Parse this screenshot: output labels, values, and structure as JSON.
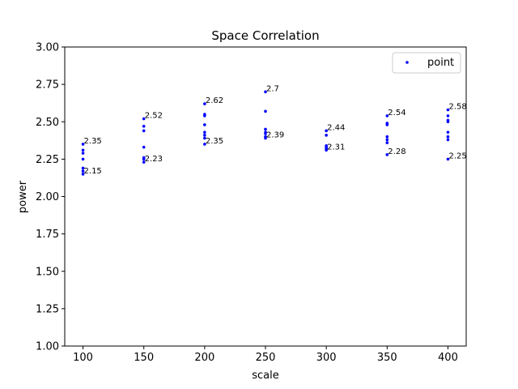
{
  "chart_data": {
    "type": "scatter",
    "title": "Space Correlation",
    "xlabel": "scale",
    "ylabel": "power",
    "xlim": [
      85,
      415
    ],
    "ylim": [
      1.0,
      3.0
    ],
    "x_ticks": [
      "100",
      "150",
      "200",
      "250",
      "300",
      "350",
      "400"
    ],
    "y_ticks": [
      "1.00",
      "1.25",
      "1.50",
      "1.75",
      "2.00",
      "2.25",
      "2.50",
      "2.75",
      "3.00"
    ],
    "grid": false,
    "legend_position": "top-right",
    "marker_color": "#0000ff",
    "series": [
      {
        "name": "point",
        "points": [
          {
            "x": 100,
            "y": 2.35
          },
          {
            "x": 100,
            "y": 2.31
          },
          {
            "x": 100,
            "y": 2.29
          },
          {
            "x": 100,
            "y": 2.25
          },
          {
            "x": 100,
            "y": 2.19
          },
          {
            "x": 100,
            "y": 2.17
          },
          {
            "x": 100,
            "y": 2.15
          },
          {
            "x": 150,
            "y": 2.52
          },
          {
            "x": 150,
            "y": 2.47
          },
          {
            "x": 150,
            "y": 2.44
          },
          {
            "x": 150,
            "y": 2.33
          },
          {
            "x": 150,
            "y": 2.26
          },
          {
            "x": 150,
            "y": 2.25
          },
          {
            "x": 150,
            "y": 2.23
          },
          {
            "x": 200,
            "y": 2.62
          },
          {
            "x": 200,
            "y": 2.55
          },
          {
            "x": 200,
            "y": 2.54
          },
          {
            "x": 200,
            "y": 2.48
          },
          {
            "x": 200,
            "y": 2.43
          },
          {
            "x": 200,
            "y": 2.41
          },
          {
            "x": 200,
            "y": 2.39
          },
          {
            "x": 200,
            "y": 2.35
          },
          {
            "x": 250,
            "y": 2.7
          },
          {
            "x": 250,
            "y": 2.57
          },
          {
            "x": 250,
            "y": 2.45
          },
          {
            "x": 250,
            "y": 2.43
          },
          {
            "x": 250,
            "y": 2.42
          },
          {
            "x": 250,
            "y": 2.4
          },
          {
            "x": 250,
            "y": 2.39
          },
          {
            "x": 300,
            "y": 2.44
          },
          {
            "x": 300,
            "y": 2.41
          },
          {
            "x": 300,
            "y": 2.34
          },
          {
            "x": 300,
            "y": 2.33
          },
          {
            "x": 300,
            "y": 2.32
          },
          {
            "x": 300,
            "y": 2.31
          },
          {
            "x": 350,
            "y": 2.54
          },
          {
            "x": 350,
            "y": 2.49
          },
          {
            "x": 350,
            "y": 2.48
          },
          {
            "x": 350,
            "y": 2.4
          },
          {
            "x": 350,
            "y": 2.38
          },
          {
            "x": 350,
            "y": 2.36
          },
          {
            "x": 350,
            "y": 2.28
          },
          {
            "x": 400,
            "y": 2.58
          },
          {
            "x": 400,
            "y": 2.54
          },
          {
            "x": 400,
            "y": 2.51
          },
          {
            "x": 400,
            "y": 2.5
          },
          {
            "x": 400,
            "y": 2.43
          },
          {
            "x": 400,
            "y": 2.4
          },
          {
            "x": 400,
            "y": 2.38
          },
          {
            "x": 400,
            "y": 2.25
          }
        ]
      }
    ],
    "annotations": [
      {
        "x": 100,
        "y": 2.35,
        "text": "2.35"
      },
      {
        "x": 100,
        "y": 2.15,
        "text": "2.15"
      },
      {
        "x": 150,
        "y": 2.52,
        "text": "2.52"
      },
      {
        "x": 150,
        "y": 2.23,
        "text": "2.23"
      },
      {
        "x": 200,
        "y": 2.62,
        "text": "2.62"
      },
      {
        "x": 200,
        "y": 2.35,
        "text": "2.35"
      },
      {
        "x": 250,
        "y": 2.7,
        "text": "2.7"
      },
      {
        "x": 250,
        "y": 2.39,
        "text": "2.39"
      },
      {
        "x": 300,
        "y": 2.44,
        "text": "2.44"
      },
      {
        "x": 300,
        "y": 2.31,
        "text": "2.31"
      },
      {
        "x": 350,
        "y": 2.54,
        "text": "2.54"
      },
      {
        "x": 350,
        "y": 2.28,
        "text": "2.28"
      },
      {
        "x": 400,
        "y": 2.58,
        "text": "2.58"
      },
      {
        "x": 400,
        "y": 2.25,
        "text": "2.25"
      }
    ]
  }
}
